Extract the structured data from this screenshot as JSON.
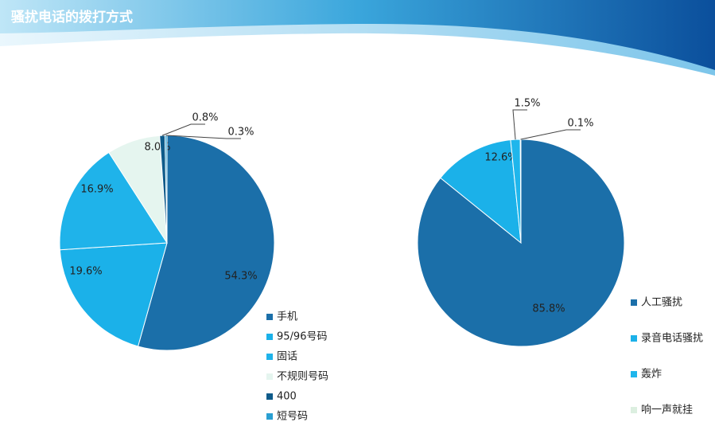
{
  "header": {
    "title": "骚扰电话的拨打方式"
  },
  "chart_data": [
    {
      "type": "pie",
      "categories": [
        "手机",
        "95/96号码",
        "固话",
        "不规则号码",
        "400",
        "短号码"
      ],
      "values": [
        54.3,
        19.6,
        16.9,
        8.0,
        0.8,
        0.3
      ],
      "value_labels": [
        "54.3%",
        "19.6%",
        "16.9%",
        "8.0%",
        "0.8%",
        "0.3%"
      ],
      "colors": [
        "#1b6fa9",
        "#1bb1e9",
        "#1fb3ea",
        "#e5f5ef",
        "#0e5b8a",
        "#2a9fd2"
      ],
      "legend": "right-bottom"
    },
    {
      "type": "pie",
      "categories": [
        "人工骚扰",
        "录音电话骚扰",
        "轰炸",
        "响一声就挂"
      ],
      "values": [
        85.8,
        12.6,
        1.5,
        0.1
      ],
      "value_labels": [
        "85.8%",
        "12.6%",
        "1.5%",
        "0.1%"
      ],
      "colors": [
        "#1b6fa9",
        "#1bb1e9",
        "#1fb6ec",
        "#dcefe0"
      ],
      "legend": "right-bottom"
    }
  ]
}
